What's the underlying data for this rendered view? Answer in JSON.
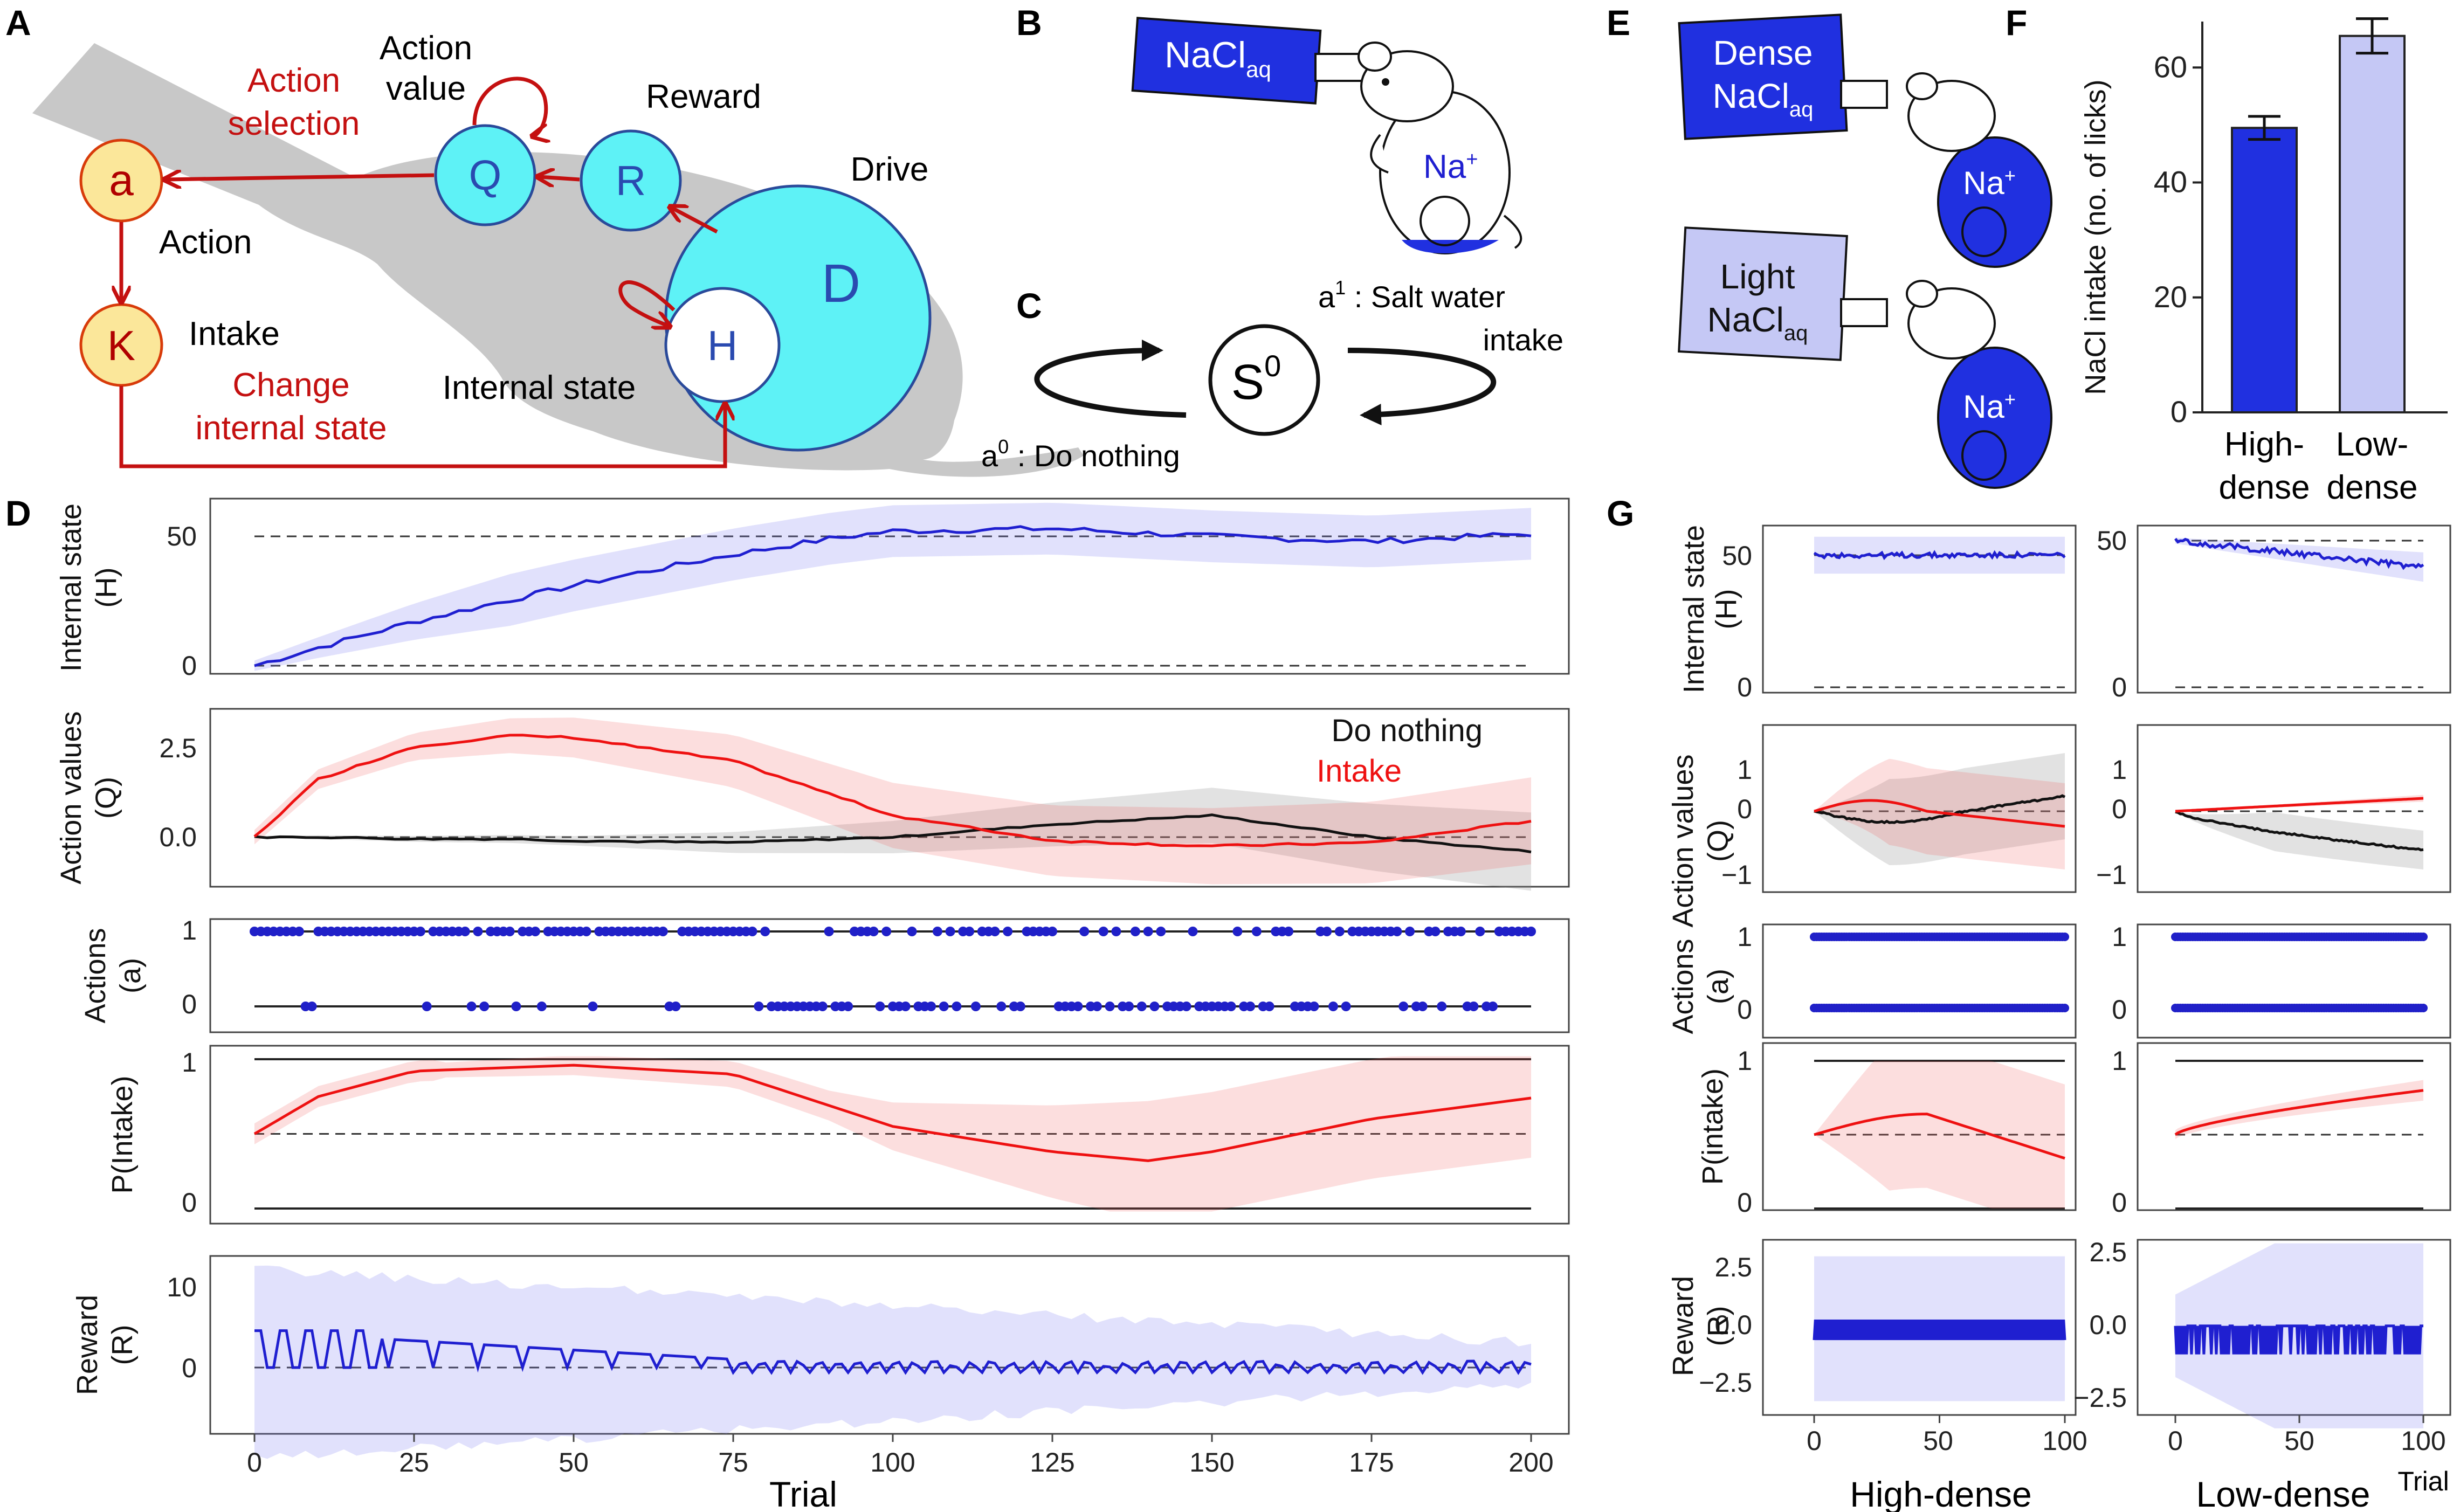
{
  "panels": {
    "A": "A",
    "B": "B",
    "C": "C",
    "D": "D",
    "E": "E",
    "F": "F",
    "G": "G"
  },
  "colors": {
    "blue": "#1f1fd0",
    "red": "#e11111",
    "cyan": "#5ef2f6",
    "yellow": "#fbe79a",
    "gray": "#c8c8c8",
    "nacl_dense": "#2030e0",
    "nacl_light": "#c5c8f5"
  },
  "panelA": {
    "a": "a",
    "action": "Action",
    "k": "K",
    "intake": "Intake",
    "q": "Q",
    "r": "R",
    "d": "D",
    "h": "H",
    "action_value_1": "Action",
    "action_value_2": "value",
    "reward": "Reward",
    "drive": "Drive",
    "internal_state": "Internal state",
    "action_selection_1": "Action",
    "action_selection_2": "selection",
    "change_1": "Change",
    "change_2": "internal state"
  },
  "panelB": {
    "nacl": "NaCl",
    "sub": "aq",
    "na": "Na",
    "plus": "+"
  },
  "panelC": {
    "s": "S",
    "s_sup": "0",
    "a1": "a",
    "a1_sup": "1",
    "a1_text": " : Salt water",
    "a1_text2": "intake",
    "a0": "a",
    "a0_sup": "0",
    "a0_text": " : Do nothing"
  },
  "panelE": {
    "dense_1": "Dense",
    "light_1": "Light",
    "nacl": "NaCl",
    "sub": "aq",
    "na": "Na",
    "plus": "+"
  },
  "panelF": {
    "ylabel": "NaCl intake (no. of licks)",
    "yticks": [
      "0",
      "20",
      "40",
      "60"
    ],
    "cat1_1": "High-",
    "cat1_2": "dense",
    "cat2_1": "Low-",
    "cat2_2": "dense"
  },
  "panelD": {
    "ylabels": {
      "h_1": "Internal state",
      "h_2": "(H)",
      "q_1": "Action values",
      "q_2": "(Q)",
      "a_1": "Actions",
      "a_2": "(a)",
      "p_1": "P(Intake)",
      "r_1": "Reward",
      "r_2": "(R)"
    },
    "legend_do_nothing": "Do nothing",
    "legend_intake": "Intake",
    "xlabel": "Trial",
    "xticks": [
      "0",
      "25",
      "50",
      "75",
      "100",
      "125",
      "150",
      "175",
      "200"
    ],
    "h_ticks": [
      "50",
      "0"
    ],
    "q_ticks": [
      "2.5",
      "0.0"
    ],
    "a_ticks": [
      "1",
      "0"
    ],
    "p_ticks": [
      "1",
      "0"
    ],
    "r_ticks": [
      "10",
      "0"
    ]
  },
  "panelG": {
    "ylabels": {
      "h_1": "Internal state",
      "h_2": "(H)",
      "q_1": "Action values",
      "q_2": "(Q)",
      "a_1": "Actions",
      "a_2": "(a)",
      "p_1": "P(intake)",
      "r_1": "Reward",
      "r_2": "(R)"
    },
    "xticks": [
      "0",
      "50",
      "100"
    ],
    "col1": "High-dense",
    "col2": "Low-dense",
    "trial": "Trial",
    "h_ticks": [
      "50",
      "0"
    ],
    "q_ticks": [
      "1",
      "0",
      "−1"
    ],
    "a_ticks": [
      "1",
      "0"
    ],
    "p_ticks": [
      "1",
      "0"
    ],
    "r_ticks": [
      "2.5",
      "0.0",
      "−2.5"
    ]
  },
  "chart_data": [
    {
      "type": "bar",
      "id": "F",
      "categories": [
        "High-dense",
        "Low-dense"
      ],
      "values": [
        49.5,
        65.5
      ],
      "error": [
        2,
        3
      ],
      "ylabel": "NaCl intake (no. of licks)",
      "ylim": [
        0,
        70
      ]
    },
    {
      "type": "line",
      "id": "D-H",
      "title": "Internal state (H)",
      "x": [
        0,
        10,
        25,
        50,
        75,
        90,
        100,
        125,
        150,
        175,
        200
      ],
      "series": [
        {
          "name": "H",
          "values": [
            0,
            7,
            17,
            31,
            43,
            49,
            52,
            53,
            50,
            48,
            51
          ]
        }
      ],
      "ylim": [
        -5,
        65
      ],
      "reference_lines": [
        50,
        0
      ]
    },
    {
      "type": "line",
      "id": "D-Q",
      "title": "Action values (Q)",
      "x": [
        0,
        10,
        25,
        40,
        50,
        75,
        100,
        125,
        150,
        175,
        200
      ],
      "series": [
        {
          "name": "Intake",
          "values": [
            0,
            1.6,
            2.5,
            2.8,
            2.75,
            2.1,
            0.6,
            -0.1,
            -0.25,
            -0.15,
            0.45
          ]
        },
        {
          "name": "Do nothing",
          "values": [
            0,
            0,
            -0.05,
            -0.05,
            -0.1,
            -0.15,
            0,
            0.35,
            0.6,
            0,
            -0.4
          ]
        }
      ],
      "ylim": [
        -1.2,
        3.4
      ]
    },
    {
      "type": "line",
      "id": "D-P",
      "title": "P(Intake)",
      "x": [
        0,
        10,
        25,
        50,
        75,
        100,
        125,
        140,
        150,
        175,
        200
      ],
      "series": [
        {
          "name": "P(Intake)",
          "values": [
            0.5,
            0.75,
            0.92,
            0.96,
            0.9,
            0.55,
            0.38,
            0.32,
            0.38,
            0.6,
            0.74
          ]
        }
      ],
      "ylim": [
        -0.1,
        1.1
      ]
    }
  ]
}
